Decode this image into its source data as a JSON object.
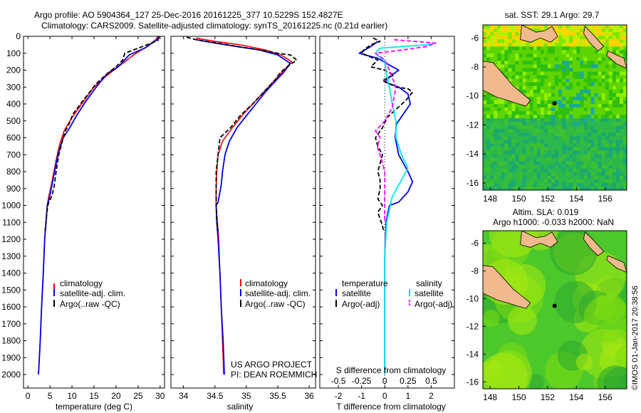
{
  "header": {
    "line1": "Argo profile: AO 5904364_127 25-Dec-2016 20161225_377 10.5229S 152.4827E",
    "line2": "Climatology: CARS2009. Satellite-adjusted climatology: synTS_20161225.nc (0.21d earlier)"
  },
  "colors": {
    "clim": "#ff0000",
    "sat": "#0000ee",
    "argo": "#000000",
    "sat_s": "#00e5ee",
    "argo_s": "#ff00ff",
    "land": "#f0b98e"
  },
  "chart_data": [
    {
      "type": "line",
      "id": "temperature",
      "xlabel": "temperature (deg C)",
      "ylabel": "",
      "xlim": [
        -1,
        31
      ],
      "ylim": [
        2080,
        0
      ],
      "xticks": [
        0,
        5,
        10,
        15,
        20,
        25,
        30
      ],
      "yticks": [
        0,
        100,
        200,
        300,
        400,
        500,
        600,
        700,
        800,
        900,
        1000,
        1100,
        1200,
        1300,
        1400,
        1500,
        1600,
        1700,
        1800,
        1900,
        2000
      ],
      "legend": [
        "climatology",
        "satellite-adj. clim.",
        "Argo(..raw -QC)"
      ],
      "series": [
        {
          "name": "climatology",
          "style": "clim",
          "points": [
            [
              29.5,
              0
            ],
            [
              29,
              20
            ],
            [
              27,
              60
            ],
            [
              24,
              110
            ],
            [
              21,
              170
            ],
            [
              17.5,
              240
            ],
            [
              15,
              300
            ],
            [
              12.5,
              390
            ],
            [
              10,
              480
            ],
            [
              8.2,
              560
            ],
            [
              7.2,
              640
            ],
            [
              6.5,
              720
            ],
            [
              5.9,
              800
            ],
            [
              5.3,
              880
            ],
            [
              4.7,
              950
            ],
            [
              4.4,
              1000
            ],
            [
              4.1,
              1100
            ],
            [
              3.8,
              1200
            ],
            [
              3.5,
              1400
            ],
            [
              3.1,
              1600
            ],
            [
              2.8,
              1800
            ],
            [
              2.4,
              2000
            ]
          ]
        },
        {
          "name": "satellite-adj. clim.",
          "style": "sat",
          "points": [
            [
              29.8,
              0
            ],
            [
              29.3,
              20
            ],
            [
              26.5,
              70
            ],
            [
              23,
              110
            ],
            [
              20.5,
              180
            ],
            [
              18,
              220
            ],
            [
              15.5,
              300
            ],
            [
              13,
              390
            ],
            [
              11,
              470
            ],
            [
              9.5,
              540
            ],
            [
              8,
              600
            ],
            [
              6.8,
              700
            ],
            [
              6.2,
              780
            ],
            [
              5.6,
              860
            ],
            [
              5,
              940
            ],
            [
              4.4,
              1000
            ],
            [
              4.1,
              1100
            ],
            [
              3.8,
              1200
            ],
            [
              3.5,
              1400
            ],
            [
              3.1,
              1600
            ],
            [
              2.8,
              1800
            ],
            [
              2.4,
              2000
            ]
          ]
        },
        {
          "name": "Argo(..raw -QC)",
          "style": "argo",
          "points": [
            [
              29.7,
              5
            ],
            [
              29.5,
              25
            ],
            [
              26,
              60
            ],
            [
              22,
              100
            ],
            [
              21.5,
              140
            ],
            [
              20,
              180
            ],
            [
              18,
              220
            ],
            [
              15.5,
              280
            ],
            [
              12.5,
              380
            ],
            [
              10.2,
              460
            ],
            [
              9.5,
              510
            ],
            [
              8.5,
              560
            ],
            [
              7.8,
              620
            ],
            [
              7,
              700
            ],
            [
              6.4,
              800
            ],
            [
              6,
              880
            ],
            [
              5.5,
              940
            ],
            [
              4.6,
              990
            ],
            [
              4.3,
              1040
            ],
            [
              4.1,
              1100
            ],
            [
              3.9,
              1150
            ]
          ]
        }
      ]
    },
    {
      "type": "line",
      "id": "salinity",
      "xlabel": "salinity",
      "ylabel": "",
      "xlim": [
        33.8,
        36.1
      ],
      "ylim": [
        2080,
        0
      ],
      "xticks": [
        34,
        34.5,
        35,
        35.5,
        36
      ],
      "legend": [
        "climatology",
        "satellite-adj. clim.",
        "Argo(..raw -QC)"
      ],
      "annotations": [
        "US ARGO PROJECT",
        "PI: DEAN ROEMMICH"
      ],
      "series": [
        {
          "name": "climatology",
          "style": "clim",
          "points": [
            [
              34.2,
              10
            ],
            [
              34.5,
              30
            ],
            [
              34.9,
              50
            ],
            [
              35.3,
              80
            ],
            [
              35.55,
              110
            ],
            [
              35.72,
              150
            ],
            [
              35.6,
              200
            ],
            [
              35.45,
              260
            ],
            [
              35.3,
              320
            ],
            [
              35.15,
              380
            ],
            [
              34.95,
              460
            ],
            [
              34.78,
              540
            ],
            [
              34.62,
              620
            ],
            [
              34.55,
              700
            ],
            [
              34.53,
              800
            ],
            [
              34.52,
              900
            ],
            [
              34.52,
              1000
            ],
            [
              34.54,
              1100
            ],
            [
              34.56,
              1200
            ],
            [
              34.58,
              1400
            ],
            [
              34.6,
              1600
            ],
            [
              34.62,
              1800
            ],
            [
              34.64,
              2000
            ]
          ]
        },
        {
          "name": "satellite-adj. clim.",
          "style": "sat",
          "points": [
            [
              34.2,
              20
            ],
            [
              34.5,
              40
            ],
            [
              34.85,
              60
            ],
            [
              35.2,
              80
            ],
            [
              35.5,
              110
            ],
            [
              35.7,
              160
            ],
            [
              35.6,
              210
            ],
            [
              35.45,
              270
            ],
            [
              35.3,
              330
            ],
            [
              35.15,
              400
            ],
            [
              35,
              470
            ],
            [
              34.85,
              540
            ],
            [
              34.73,
              620
            ],
            [
              34.66,
              700
            ],
            [
              34.62,
              800
            ],
            [
              34.6,
              880
            ],
            [
              34.55,
              980
            ],
            [
              34.52,
              1000
            ],
            [
              34.53,
              1100
            ],
            [
              34.55,
              1200
            ],
            [
              34.58,
              1400
            ],
            [
              34.6,
              1600
            ],
            [
              34.63,
              1800
            ],
            [
              34.65,
              2000
            ]
          ]
        },
        {
          "name": "Argo(..raw -QC)",
          "style": "argo",
          "points": [
            [
              34.05,
              5
            ],
            [
              34.2,
              20
            ],
            [
              34.55,
              40
            ],
            [
              34.85,
              60
            ],
            [
              35.2,
              80
            ],
            [
              35.5,
              100
            ],
            [
              35.7,
              110
            ],
            [
              35.8,
              140
            ],
            [
              35.65,
              180
            ],
            [
              35.55,
              210
            ],
            [
              35.45,
              260
            ],
            [
              35.3,
              320
            ],
            [
              35.1,
              400
            ],
            [
              34.9,
              470
            ],
            [
              34.75,
              540
            ],
            [
              34.58,
              600
            ],
            [
              34.55,
              700
            ],
            [
              34.52,
              800
            ],
            [
              34.52,
              900
            ],
            [
              34.52,
              1000
            ],
            [
              34.53,
              1100
            ],
            [
              34.55,
              1150
            ]
          ]
        }
      ]
    },
    {
      "type": "line",
      "id": "difference",
      "xlabel": "T difference from climatology",
      "xlabel_top": "S difference from climatology",
      "xlim": [
        -2.8,
        3.0
      ],
      "ylim": [
        2080,
        0
      ],
      "xticks": [
        -2,
        -1,
        0,
        1,
        2
      ],
      "xticks_s": [
        -0.5,
        -0.25,
        0,
        0.25,
        0.5
      ],
      "xticklabels_s": [
        "-0.5",
        "-0.25",
        "0",
        "0.25",
        "0.5"
      ],
      "legend_headers": [
        "temperature",
        "salinity"
      ],
      "legend": [
        "satellite",
        "Argo(-adj)",
        "satellite",
        "Argo(-adj)"
      ],
      "series": [
        {
          "name": "T satellite",
          "style": "sat",
          "points": [
            [
              -0.3,
              30
            ],
            [
              -0.6,
              60
            ],
            [
              -1.1,
              100
            ],
            [
              -0.3,
              130
            ],
            [
              0.2,
              170
            ],
            [
              0.6,
              200
            ],
            [
              0.2,
              240
            ],
            [
              0,
              270
            ],
            [
              0.6,
              300
            ],
            [
              1.0,
              340
            ],
            [
              1.1,
              400
            ],
            [
              0.5,
              520
            ],
            [
              0.45,
              600
            ],
            [
              0.6,
              700
            ],
            [
              1.0,
              800
            ],
            [
              1.2,
              860
            ],
            [
              1.0,
              920
            ],
            [
              0.6,
              980
            ],
            [
              0.2,
              1000
            ],
            [
              0.05,
              1100
            ],
            [
              0,
              1300
            ],
            [
              0,
              2000
            ]
          ]
        },
        {
          "name": "T Argo(-adj)",
          "style": "argo",
          "points": [
            [
              -0.5,
              10
            ],
            [
              -0.2,
              30
            ],
            [
              -0.6,
              50
            ],
            [
              -0.9,
              80
            ],
            [
              -1.0,
              100
            ],
            [
              -0.3,
              140
            ],
            [
              -0.6,
              180
            ],
            [
              0,
              200
            ],
            [
              0.4,
              230
            ],
            [
              -0.1,
              260
            ],
            [
              0.5,
              300
            ],
            [
              1.0,
              310
            ],
            [
              1.2,
              330
            ],
            [
              0.9,
              380
            ],
            [
              0.5,
              430
            ],
            [
              0.1,
              480
            ],
            [
              -0.1,
              540
            ],
            [
              -0.4,
              600
            ],
            [
              -0.3,
              650
            ],
            [
              -0.1,
              700
            ],
            [
              -0.3,
              800
            ],
            [
              -0.2,
              850
            ],
            [
              -0.2,
              900
            ],
            [
              -0.3,
              960
            ],
            [
              -0.1,
              1000
            ],
            [
              -0.3,
              1040
            ],
            [
              -0.2,
              1080
            ],
            [
              -0.1,
              1120
            ],
            [
              -0.05,
              1150
            ]
          ]
        },
        {
          "name": "S satellite",
          "style": "sat_s",
          "points": [
            [
              0.55,
              40
            ],
            [
              0.45,
              50
            ],
            [
              -0.05,
              70
            ],
            [
              -0.1,
              100
            ],
            [
              0.0,
              150
            ],
            [
              0.02,
              230
            ],
            [
              0.05,
              300
            ],
            [
              0.08,
              400
            ],
            [
              0.12,
              500
            ],
            [
              0.12,
              600
            ],
            [
              0.18,
              700
            ],
            [
              0.25,
              780
            ],
            [
              0.18,
              850
            ],
            [
              0.08,
              950
            ],
            [
              0.02,
              1100
            ],
            [
              0,
              1300
            ],
            [
              0,
              2000
            ]
          ]
        },
        {
          "name": "S Argo(-adj)",
          "style": "argo_s",
          "points": [
            [
              0.1,
              20
            ],
            [
              0.55,
              40
            ],
            [
              0.45,
              60
            ],
            [
              0.2,
              80
            ],
            [
              -0.1,
              100
            ],
            [
              0.0,
              140
            ],
            [
              0.05,
              200
            ],
            [
              0.12,
              300
            ],
            [
              0.1,
              360
            ],
            [
              0.08,
              420
            ],
            [
              0.0,
              500
            ],
            [
              -0.1,
              560
            ],
            [
              -0.05,
              600
            ],
            [
              -0.08,
              650
            ],
            [
              -0.05,
              700
            ],
            [
              0.0,
              800
            ],
            [
              0.0,
              900
            ],
            [
              0.0,
              1000
            ],
            [
              0.0,
              1100
            ]
          ]
        }
      ]
    },
    {
      "type": "heatmap",
      "id": "sst-map",
      "title": "sat. SST: 29.1  Argo: 29.7",
      "xticks": [
        148,
        150,
        152,
        154,
        156
      ],
      "yticks": [
        -6,
        -8,
        -10,
        -12,
        -14,
        -16
      ],
      "xlim": [
        147.5,
        157.5
      ],
      "ylim": [
        -16.5,
        -5.1
      ],
      "argo_position": [
        152.48,
        -10.52
      ]
    },
    {
      "type": "heatmap",
      "id": "altim-map",
      "title": "Altim. SLA: 0.019",
      "subtitle": "Argo h1000: -0.033  h2000: NaN",
      "xticks": [
        148,
        150,
        152,
        154,
        156
      ],
      "yticks": [
        -6,
        -8,
        -10,
        -12,
        -14,
        -16
      ],
      "xlim": [
        147.5,
        157.5
      ],
      "ylim": [
        -16.5,
        -5.1
      ],
      "argo_position": [
        152.48,
        -10.52
      ]
    }
  ],
  "credit": "©IMOS 01-Jan-2017 20:38:56"
}
